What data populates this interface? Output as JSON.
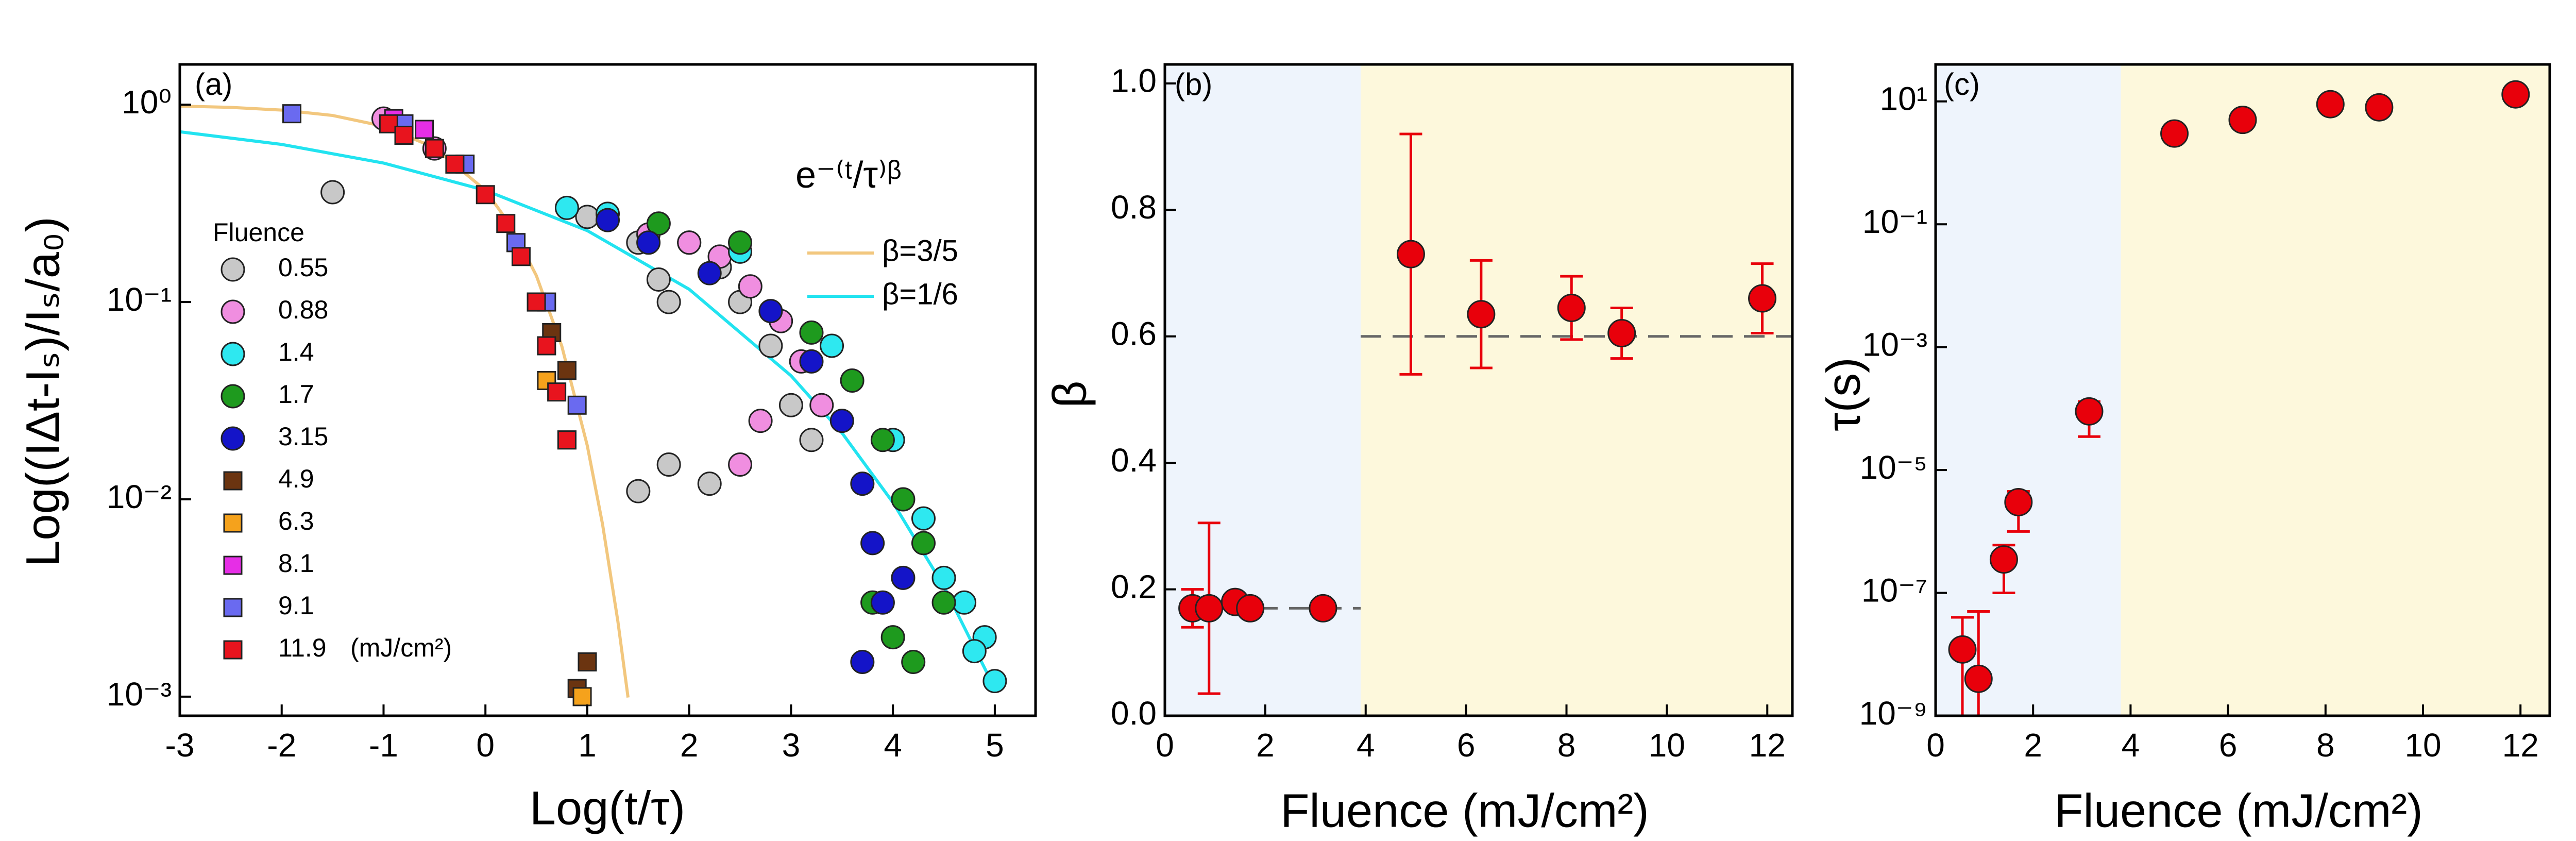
{
  "chart_data": [
    {
      "type": "scatter",
      "label": "(a)",
      "x_label": "Log(t/τ)",
      "y_label": "Log((IΔt-Iₛ)/Iₛ/a₀)",
      "yscale": "log",
      "xlim": [
        -3,
        5.4
      ],
      "ylim": [
        0.0008,
        1.6
      ],
      "xticks": [
        -3,
        -2,
        -1,
        0,
        1,
        2,
        3,
        4,
        5
      ],
      "yticks": [
        {
          "value": 0.001,
          "label": "10⁻³"
        },
        {
          "value": 0.01,
          "label": "10⁻²"
        },
        {
          "value": 0.1,
          "label": "10⁻¹"
        },
        {
          "value": 1,
          "label": "10⁰"
        }
      ],
      "legend_title": "Fluence",
      "legend_unit": "(mJ/cm²)",
      "annotation": "e⁻⁽ᵗ/τ⁾ᵝ",
      "series": [
        {
          "name": "β=3/5",
          "marker": "line",
          "color": "#f2c77e",
          "x": [
            -3,
            -2.5,
            -2,
            -1.5,
            -1,
            -0.5,
            0,
            0.25,
            0.5,
            0.75,
            1.0,
            1.15,
            1.3,
            1.4
          ],
          "values": [
            0.984,
            0.969,
            0.939,
            0.882,
            0.778,
            0.606,
            0.368,
            0.243,
            0.136,
            0.0597,
            0.0187,
            0.00746,
            0.00241,
            0.00099
          ]
        },
        {
          "name": "β=1/6",
          "marker": "line",
          "color": "#22e3f0",
          "x": [
            -3,
            -2,
            -1,
            0,
            1,
            2,
            3,
            3.5,
            4,
            4.5,
            5
          ],
          "values": [
            0.729,
            0.629,
            0.506,
            0.368,
            0.23,
            0.116,
            0.0423,
            0.0217,
            0.00964,
            0.00362,
            0.0011
          ]
        },
        {
          "name": "0.55",
          "marker": "circle",
          "color": "#c8c8c8",
          "x": [
            -1.5,
            1.0,
            1.5,
            1.7,
            1.8,
            2.0,
            2.3,
            2.5,
            2.8,
            3.0,
            2.2,
            1.5,
            1.8,
            3.2
          ],
          "values": [
            0.36,
            0.27,
            0.2,
            0.13,
            0.1,
            0.2,
            0.15,
            0.1,
            0.06,
            0.03,
            0.012,
            0.011,
            0.015,
            0.02
          ]
        },
        {
          "name": "0.88",
          "marker": "circle",
          "color": "#f08ee0",
          "x": [
            -1,
            -0.5,
            1.6,
            2.0,
            2.3,
            2.6,
            2.9,
            3.1,
            2.5,
            3.3,
            2.7
          ],
          "values": [
            0.85,
            0.6,
            0.22,
            0.2,
            0.17,
            0.12,
            0.08,
            0.05,
            0.015,
            0.03,
            0.025
          ]
        },
        {
          "name": "1.4",
          "marker": "circle",
          "color": "#2ee8f0",
          "x": [
            0.8,
            1.2,
            2.5,
            3.4,
            4.0,
            4.3,
            4.5,
            4.7,
            4.9,
            5.0,
            4.8
          ],
          "values": [
            0.3,
            0.28,
            0.18,
            0.06,
            0.02,
            0.008,
            0.004,
            0.003,
            0.002,
            0.0012,
            0.0017
          ]
        },
        {
          "name": "1.7",
          "marker": "circle",
          "color": "#1e9a1e",
          "x": [
            1.7,
            2.5,
            3.2,
            3.6,
            3.9,
            4.1,
            4.3,
            3.8,
            4.2,
            4.5,
            4.0
          ],
          "values": [
            0.25,
            0.2,
            0.07,
            0.04,
            0.02,
            0.01,
            0.006,
            0.003,
            0.0015,
            0.003,
            0.002
          ]
        },
        {
          "name": "3.15",
          "marker": "circle",
          "color": "#1414c8",
          "x": [
            1.2,
            1.6,
            2.2,
            2.8,
            3.2,
            3.5,
            3.7,
            3.8,
            3.9,
            3.7,
            4.1
          ],
          "values": [
            0.26,
            0.2,
            0.14,
            0.09,
            0.05,
            0.025,
            0.012,
            0.006,
            0.003,
            0.0015,
            0.004
          ]
        },
        {
          "name": "4.9",
          "marker": "square",
          "color": "#6b3410",
          "x": [
            0.5,
            0.65,
            0.8,
            1.0,
            0.9
          ],
          "values": [
            0.1,
            0.07,
            0.045,
            0.0015,
            0.0011
          ]
        },
        {
          "name": "6.3",
          "marker": "square",
          "color": "#f5a21c",
          "x": [
            0.6,
            0.8,
            0.95
          ],
          "values": [
            0.04,
            0.02,
            0.001
          ]
        },
        {
          "name": "8.1",
          "marker": "square",
          "color": "#e62ee6",
          "x": [
            -0.9,
            -0.6,
            0.3
          ],
          "values": [
            0.85,
            0.75,
            0.2
          ]
        },
        {
          "name": "9.1",
          "marker": "square",
          "color": "#6a6af0",
          "x": [
            -1.9,
            -0.8,
            -0.2,
            0.3,
            0.6,
            0.9
          ],
          "values": [
            0.9,
            0.8,
            0.5,
            0.2,
            0.1,
            0.03
          ]
        },
        {
          "name": "11.9",
          "marker": "square",
          "color": "#e8141e",
          "x": [
            -0.95,
            -0.8,
            -0.5,
            -0.3,
            0,
            0.2,
            0.35,
            0.5,
            0.6,
            0.7,
            0.8
          ],
          "values": [
            0.8,
            0.7,
            0.6,
            0.5,
            0.35,
            0.25,
            0.17,
            0.1,
            0.06,
            0.035,
            0.02
          ]
        }
      ]
    },
    {
      "type": "scatter",
      "label": "(b)",
      "x_label": "Fluence (mJ/cm²)",
      "y_label": "β",
      "xlim": [
        0,
        12.5
      ],
      "ylim": [
        0,
        1.03
      ],
      "xticks": [
        0,
        2,
        4,
        6,
        8,
        10,
        12
      ],
      "yticks": [
        {
          "value": 0,
          "label": "0.0"
        },
        0.2,
        0.4,
        0.6,
        0.8,
        {
          "value": 1,
          "label": "1.0"
        }
      ],
      "regions": [
        {
          "x": [
            0,
            3.9
          ],
          "color": "#eef4fc"
        },
        {
          "x": [
            3.9,
            12.5
          ],
          "color": "#fdf8dc"
        }
      ],
      "reference_lines": [
        {
          "y": 0.17,
          "x": [
            1.2,
            3.9
          ],
          "color": "#666666"
        },
        {
          "y": 0.6,
          "x": [
            3.9,
            12.5
          ],
          "color": "#666666"
        }
      ],
      "series": [
        {
          "marker": "circle",
          "color": "#e8000b",
          "x": [
            0.55,
            0.88,
            1.4,
            1.7,
            3.15,
            4.9,
            6.3,
            8.1,
            9.1,
            11.9
          ],
          "values": [
            0.17,
            0.17,
            0.18,
            0.17,
            0.17,
            0.73,
            0.635,
            0.645,
            0.605,
            0.66
          ],
          "errors": [
            0.03,
            0.135,
            0.01,
            0.01,
            0.005,
            0.19,
            0.085,
            0.05,
            0.04,
            0.055
          ]
        }
      ]
    },
    {
      "type": "scatter",
      "label": "(c)",
      "x_label": "Fluence (mJ/cm²)",
      "y_label": "τ(s)",
      "yscale": "log",
      "xlim": [
        0,
        12.6
      ],
      "ylim": [
        1e-09,
        40
      ],
      "xticks": [
        0,
        2,
        4,
        6,
        8,
        10,
        12
      ],
      "yticks": [
        {
          "value": 1e-09,
          "label": "10⁻⁹"
        },
        {
          "value": 1e-07,
          "label": "10⁻⁷"
        },
        {
          "value": 1e-05,
          "label": "10⁻⁵"
        },
        {
          "value": 0.001,
          "label": "10⁻³"
        },
        {
          "value": 0.1,
          "label": "10⁻¹"
        },
        {
          "value": 10,
          "label": "10¹"
        }
      ],
      "regions": [
        {
          "x": [
            0,
            3.8
          ],
          "color": "#eef4fc"
        },
        {
          "x": [
            3.8,
            12.6
          ],
          "color": "#fdf8dc"
        }
      ],
      "series": [
        {
          "marker": "circle",
          "color": "#e8000b",
          "x": [
            0.55,
            0.88,
            1.4,
            1.7,
            3.15,
            4.9,
            6.3,
            8.1,
            9.1,
            11.9
          ],
          "values": [
            1.2e-08,
            4e-09,
            3.5e-07,
            3e-06,
            9e-05,
            3,
            5,
            9,
            8,
            13
          ],
          "low": [
            5e-10,
            5e-10,
            1e-07,
            1e-06,
            3.5e-05,
            null,
            null,
            null,
            null,
            null
          ],
          "high": [
            4e-08,
            5e-08,
            6e-07,
            4.5e-06,
            0.00013,
            null,
            null,
            null,
            null,
            null
          ]
        }
      ]
    }
  ]
}
